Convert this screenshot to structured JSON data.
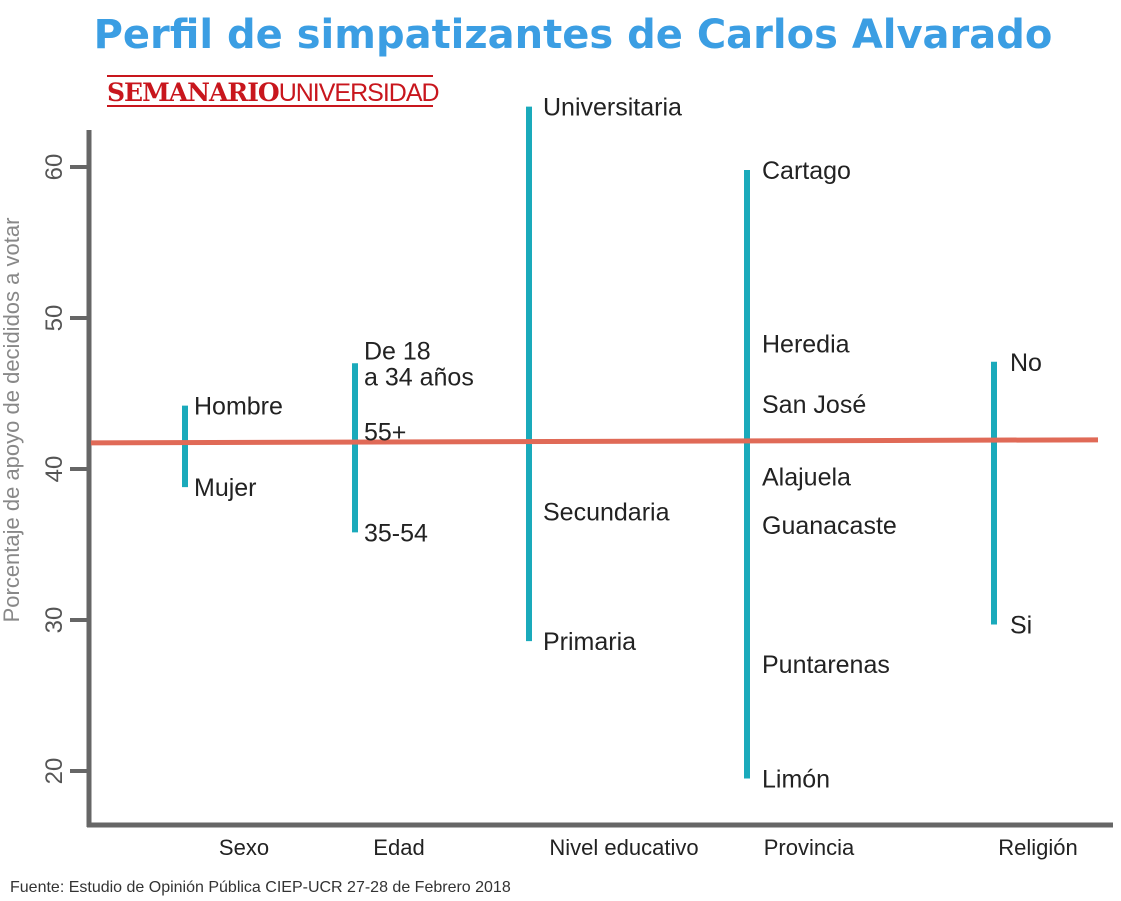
{
  "colors": {
    "title": "#3b9ee3",
    "brand": "#c8161d",
    "range": "#1aaabb",
    "reference": "#e06a57",
    "axis": "#666666"
  },
  "chart_data": {
    "type": "range",
    "title": "Perfil de simpatizantes de Carlos Alvarado",
    "brand": {
      "bold": "SEMANARIO",
      "light": "UNIVERSIDAD"
    },
    "ylabel": "Porcentaje de apoyo de decididos a votar",
    "ylim": [
      17,
      64
    ],
    "yticks": [
      20,
      30,
      40,
      50,
      60
    ],
    "reference_value": 41.8,
    "categories": [
      "Sexo",
      "Edad",
      "Nivel educativo",
      "Provincia",
      "Religión"
    ],
    "groups": [
      {
        "category": "Sexo",
        "points": [
          {
            "label": "Hombre",
            "value": 44.2
          },
          {
            "label": "Mujer",
            "value": 38.8
          }
        ]
      },
      {
        "category": "Edad",
        "points": [
          {
            "label": "De 18\na 34 años",
            "value": 47.0
          },
          {
            "label": "55+",
            "value": 42.5
          },
          {
            "label": "35-54",
            "value": 35.8
          }
        ]
      },
      {
        "category": "Nivel educativo",
        "points": [
          {
            "label": "Universitaria",
            "value": 64.0
          },
          {
            "label": "Secundaria",
            "value": 37.2
          },
          {
            "label": "Primaria",
            "value": 28.6
          }
        ]
      },
      {
        "category": "Provincia",
        "points": [
          {
            "label": "Cartago",
            "value": 59.8
          },
          {
            "label": "Heredia",
            "value": 48.3
          },
          {
            "label": "San José",
            "value": 44.3
          },
          {
            "label": "Alajuela",
            "value": 39.5
          },
          {
            "label": "Guanacaste",
            "value": 36.3
          },
          {
            "label": "Puntarenas",
            "value": 27.1
          },
          {
            "label": "Limón",
            "value": 19.5
          }
        ]
      },
      {
        "category": "Religión",
        "points": [
          {
            "label": "No",
            "value": 47.1
          },
          {
            "label": "Si",
            "value": 29.7
          }
        ]
      }
    ],
    "source": "Fuente: Estudio de Opinión Pública CIEP-UCR 27-28 de Febrero 2018"
  }
}
